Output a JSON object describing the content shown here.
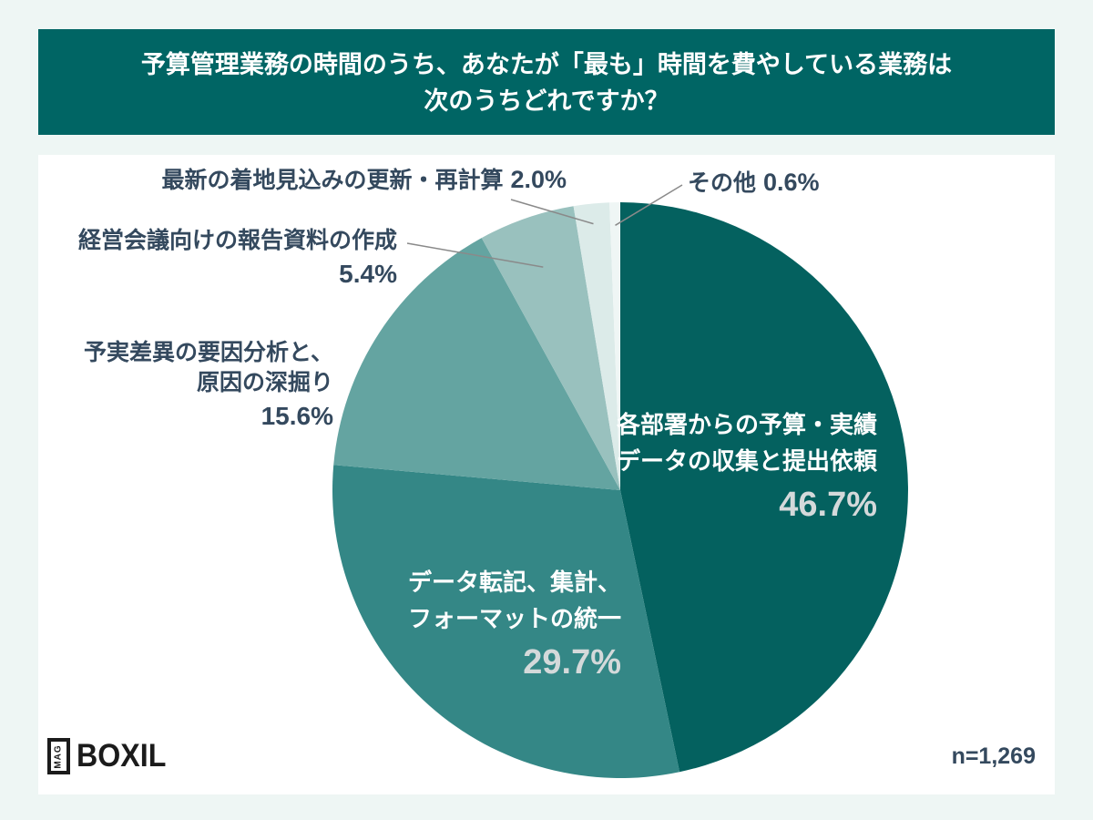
{
  "header": {
    "title_line1": "予算管理業務の時間のうち、あなたが「最も」時間を費やしている業務は",
    "title_line2": "次のうちどれですか？",
    "bg_color": "#006564",
    "text_color": "#ffffff"
  },
  "chart_data": {
    "type": "pie",
    "title": "予算管理業務の時間のうち、あなたが「最も」時間を費やしている業務は次のうちどれですか？",
    "sample_size": "n=1,269",
    "start_angle": "top",
    "direction": "clockwise",
    "legend": "none (direct labels with leader lines)",
    "label_color": "#34495e",
    "leader_line_color": "#8a8a8a",
    "slices": [
      {
        "label": "各部署からの予算・実績データの収集と提出依頼",
        "label_lines": [
          "各部署からの予算・実績",
          "データの収集と提出依頼"
        ],
        "value": 46.7,
        "pct_label": "46.7%",
        "color": "#04615f",
        "label_placement": "inside"
      },
      {
        "label": "データ転記、集計、フォーマットの統一",
        "label_lines": [
          "データ転記、集計、",
          "フォーマットの統一"
        ],
        "value": 29.7,
        "pct_label": "29.7%",
        "color": "#348786",
        "label_placement": "inside"
      },
      {
        "label": "予実差異の要因分析と、原因の深掘り",
        "label_lines": [
          "予実差異の要因分析と、",
          "原因の深掘り"
        ],
        "value": 15.6,
        "pct_label": "15.6%",
        "color": "#64a4a1",
        "label_placement": "outside"
      },
      {
        "label": "経営会議向けの報告資料の作成",
        "label_lines": [
          "経営会議向けの報告資料の作成"
        ],
        "value": 5.4,
        "pct_label": "5.4%",
        "color": "#99c1be",
        "label_placement": "outside-leader"
      },
      {
        "label": "最新の着地見込みの更新・再計算",
        "label_lines": [
          "最新の着地見込みの更新・再計算"
        ],
        "value": 2.0,
        "pct_label": "2.0%",
        "color": "#dcebe9",
        "label_placement": "outside-leader"
      },
      {
        "label": "その他",
        "label_lines": [
          "その他"
        ],
        "value": 0.6,
        "pct_label": "0.6%",
        "color": "#eff6f5",
        "label_placement": "outside-leader"
      }
    ]
  },
  "footer": {
    "logo_mag": "MAG",
    "logo_word": "BOXIL",
    "sample_size": "n=1,269"
  }
}
